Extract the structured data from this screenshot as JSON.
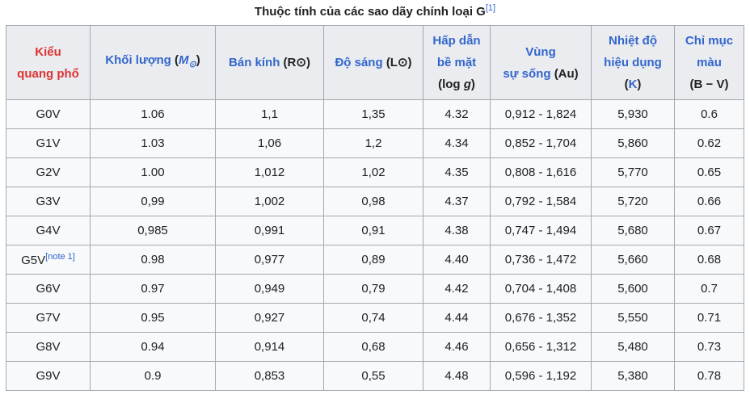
{
  "title": {
    "text": "Thuộc tính của các sao dãy chính loại G",
    "ref": "[1]"
  },
  "headers": {
    "spectral": [
      "Kiểu",
      "quang phổ"
    ],
    "mass": {
      "label": "Khối lượng",
      "open": "(",
      "unit": "M",
      "sub": "⊙",
      "close": ")"
    },
    "radius": {
      "label": "Bán kính",
      "rest": "(R⊙)"
    },
    "luminosity": {
      "label": "Độ sáng",
      "rest": "(L⊙)"
    },
    "gravity": {
      "line1": "Hấp dẫn",
      "line2": "bề mặt",
      "line3a": "(log ",
      "line3g": "g",
      "line3b": ")"
    },
    "habitable": {
      "line1": "Vùng",
      "line2a": "sự sống",
      "line2b": "(Au)"
    },
    "temperature": {
      "line1": "Nhiệt độ",
      "line2": "hiệu dụng",
      "line3a": "(",
      "line3k": "K",
      "line3b": ")"
    },
    "color_index": {
      "line1": "Chỉ mục",
      "line2": "màu",
      "line3": "(B − V)"
    }
  },
  "rows": [
    {
      "type": "G0V",
      "note": "",
      "mass": "1.06",
      "radius": "1,1",
      "luminosity": "1,35",
      "gravity": "4.32",
      "habitable": "0,912 - 1,824",
      "temperature": "5,930",
      "color": "0.6"
    },
    {
      "type": "G1V",
      "note": "",
      "mass": "1.03",
      "radius": "1,06",
      "luminosity": "1,2",
      "gravity": "4.34",
      "habitable": "0,852 - 1,704",
      "temperature": "5,860",
      "color": "0.62"
    },
    {
      "type": "G2V",
      "note": "",
      "mass": "1.00",
      "radius": "1,012",
      "luminosity": "1,02",
      "gravity": "4.35",
      "habitable": "0,808 - 1,616",
      "temperature": "5,770",
      "color": "0.65"
    },
    {
      "type": "G3V",
      "note": "",
      "mass": "0,99",
      "radius": "1,002",
      "luminosity": "0,98",
      "gravity": "4.37",
      "habitable": "0,792 - 1,584",
      "temperature": "5,720",
      "color": "0.66"
    },
    {
      "type": "G4V",
      "note": "",
      "mass": "0,985",
      "radius": "0,991",
      "luminosity": "0,91",
      "gravity": "4.38",
      "habitable": "0,747 - 1,494",
      "temperature": "5,680",
      "color": "0.67"
    },
    {
      "type": "G5V",
      "note": "[note 1]",
      "mass": "0.98",
      "radius": "0,977",
      "luminosity": "0,89",
      "gravity": "4.40",
      "habitable": "0,736 - 1,472",
      "temperature": "5,660",
      "color": "0.68"
    },
    {
      "type": "G6V",
      "note": "",
      "mass": "0.97",
      "radius": "0,949",
      "luminosity": "0,79",
      "gravity": "4.42",
      "habitable": "0,704 - 1,408",
      "temperature": "5,600",
      "color": "0.7"
    },
    {
      "type": "G7V",
      "note": "",
      "mass": "0.95",
      "radius": "0,927",
      "luminosity": "0,74",
      "gravity": "4.44",
      "habitable": "0,676 - 1,352",
      "temperature": "5,550",
      "color": "0.71"
    },
    {
      "type": "G8V",
      "note": "",
      "mass": "0.94",
      "radius": "0,914",
      "luminosity": "0,68",
      "gravity": "4.46",
      "habitable": "0,656 - 1,312",
      "temperature": "5,480",
      "color": "0.73"
    },
    {
      "type": "G9V",
      "note": "",
      "mass": "0.9",
      "radius": "0,853",
      "luminosity": "0,55",
      "gravity": "4.48",
      "habitable": "0,596 - 1,192",
      "temperature": "5,380",
      "color": "0.78"
    }
  ]
}
